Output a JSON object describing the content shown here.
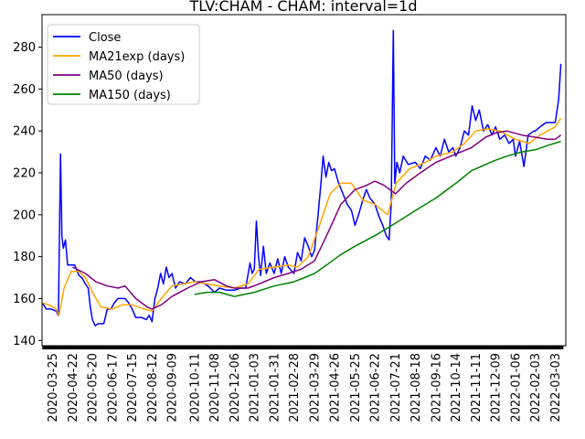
{
  "chart_data": {
    "type": "line",
    "title": "TLV:CHAM - CHAM: interval=1d",
    "xlabel": "",
    "ylabel": "",
    "ylim": [
      137.5,
      295.5
    ],
    "xlim": [
      "2020-03-10",
      "2022-03-18"
    ],
    "yticks": [
      140,
      160,
      180,
      200,
      220,
      240,
      260,
      280
    ],
    "xticks": [
      "2020-03-25",
      "2020-04-22",
      "2020-05-20",
      "2020-06-17",
      "2020-07-15",
      "2020-08-12",
      "2020-09-09",
      "2020-10-11",
      "2020-11-08",
      "2020-12-06",
      "2021-01-03",
      "2021-01-31",
      "2021-02-28",
      "2021-03-29",
      "2021-04-26",
      "2021-05-25",
      "2021-06-22",
      "2021-07-21",
      "2021-08-18",
      "2021-09-16",
      "2021-10-14",
      "2021-11-11",
      "2021-12-09",
      "2022-01-06",
      "2022-02-03",
      "2022-03-03"
    ],
    "legend_position": "upper left",
    "grid": false,
    "series": [
      {
        "name": "Close",
        "color": "#0000ff",
        "points": [
          [
            "2020-03-10",
            158
          ],
          [
            "2020-03-16",
            155
          ],
          [
            "2020-03-23",
            155
          ],
          [
            "2020-03-30",
            154
          ],
          [
            "2020-04-02",
            152
          ],
          [
            "2020-04-05",
            229
          ],
          [
            "2020-04-07",
            190
          ],
          [
            "2020-04-09",
            184
          ],
          [
            "2020-04-12",
            188
          ],
          [
            "2020-04-15",
            176
          ],
          [
            "2020-04-25",
            176
          ],
          [
            "2020-05-01",
            171
          ],
          [
            "2020-05-05",
            170
          ],
          [
            "2020-05-10",
            167
          ],
          [
            "2020-05-14",
            165
          ],
          [
            "2020-05-17",
            156
          ],
          [
            "2020-05-20",
            150
          ],
          [
            "2020-05-24",
            147
          ],
          [
            "2020-05-28",
            148
          ],
          [
            "2020-06-05",
            148
          ],
          [
            "2020-06-10",
            155
          ],
          [
            "2020-06-15",
            155
          ],
          [
            "2020-06-20",
            158
          ],
          [
            "2020-06-25",
            160
          ],
          [
            "2020-07-05",
            160
          ],
          [
            "2020-07-10",
            158
          ],
          [
            "2020-07-15",
            155
          ],
          [
            "2020-07-20",
            151
          ],
          [
            "2020-07-28",
            151
          ],
          [
            "2020-08-04",
            150
          ],
          [
            "2020-08-08",
            152
          ],
          [
            "2020-08-12",
            149
          ],
          [
            "2020-08-16",
            160
          ],
          [
            "2020-08-20",
            165
          ],
          [
            "2020-08-24",
            172
          ],
          [
            "2020-08-28",
            167
          ],
          [
            "2020-09-01",
            175
          ],
          [
            "2020-09-05",
            170
          ],
          [
            "2020-09-09",
            172
          ],
          [
            "2020-09-14",
            165
          ],
          [
            "2020-09-20",
            168
          ],
          [
            "2020-09-28",
            167
          ],
          [
            "2020-10-05",
            170
          ],
          [
            "2020-10-12",
            168
          ],
          [
            "2020-10-20",
            168
          ],
          [
            "2020-10-30",
            166
          ],
          [
            "2020-11-08",
            163
          ],
          [
            "2020-11-15",
            165
          ],
          [
            "2020-11-25",
            164
          ],
          [
            "2020-12-06",
            164
          ],
          [
            "2020-12-15",
            165
          ],
          [
            "2020-12-22",
            165
          ],
          [
            "2020-12-28",
            177
          ],
          [
            "2020-12-31",
            172
          ],
          [
            "2021-01-03",
            174
          ],
          [
            "2021-01-06",
            197
          ],
          [
            "2021-01-09",
            180
          ],
          [
            "2021-01-12",
            171
          ],
          [
            "2021-01-16",
            185
          ],
          [
            "2021-01-20",
            172
          ],
          [
            "2021-01-25",
            177
          ],
          [
            "2021-01-31",
            172
          ],
          [
            "2021-02-05",
            179
          ],
          [
            "2021-02-10",
            172
          ],
          [
            "2021-02-15",
            180
          ],
          [
            "2021-02-20",
            175
          ],
          [
            "2021-02-28",
            172
          ],
          [
            "2021-03-05",
            182
          ],
          [
            "2021-03-10",
            178
          ],
          [
            "2021-03-15",
            189
          ],
          [
            "2021-03-20",
            185
          ],
          [
            "2021-03-25",
            180
          ],
          [
            "2021-03-29",
            183
          ],
          [
            "2021-04-03",
            200
          ],
          [
            "2021-04-07",
            215
          ],
          [
            "2021-04-10",
            228
          ],
          [
            "2021-04-14",
            218
          ],
          [
            "2021-04-18",
            225
          ],
          [
            "2021-04-22",
            221
          ],
          [
            "2021-04-26",
            222
          ],
          [
            "2021-05-02",
            215
          ],
          [
            "2021-05-08",
            210
          ],
          [
            "2021-05-14",
            205
          ],
          [
            "2021-05-20",
            202
          ],
          [
            "2021-05-25",
            195
          ],
          [
            "2021-05-30",
            200
          ],
          [
            "2021-06-05",
            207
          ],
          [
            "2021-06-10",
            212
          ],
          [
            "2021-06-15",
            208
          ],
          [
            "2021-06-22",
            205
          ],
          [
            "2021-06-28",
            199
          ],
          [
            "2021-07-03",
            195
          ],
          [
            "2021-07-08",
            190
          ],
          [
            "2021-07-12",
            188
          ],
          [
            "2021-07-15",
            205
          ],
          [
            "2021-07-18",
            288
          ],
          [
            "2021-07-20",
            215
          ],
          [
            "2021-07-23",
            225
          ],
          [
            "2021-07-27",
            220
          ],
          [
            "2021-08-01",
            228
          ],
          [
            "2021-08-08",
            224
          ],
          [
            "2021-08-18",
            225
          ],
          [
            "2021-08-25",
            222
          ],
          [
            "2021-09-01",
            228
          ],
          [
            "2021-09-08",
            226
          ],
          [
            "2021-09-16",
            232
          ],
          [
            "2021-09-22",
            228
          ],
          [
            "2021-09-28",
            236
          ],
          [
            "2021-10-04",
            230
          ],
          [
            "2021-10-10",
            232
          ],
          [
            "2021-10-14",
            228
          ],
          [
            "2021-10-20",
            232
          ],
          [
            "2021-10-26",
            240
          ],
          [
            "2021-11-01",
            238
          ],
          [
            "2021-11-06",
            252
          ],
          [
            "2021-11-11",
            245
          ],
          [
            "2021-11-16",
            250
          ],
          [
            "2021-11-22",
            240
          ],
          [
            "2021-11-28",
            243
          ],
          [
            "2021-12-04",
            238
          ],
          [
            "2021-12-09",
            242
          ],
          [
            "2021-12-15",
            236
          ],
          [
            "2021-12-22",
            238
          ],
          [
            "2021-12-28",
            234
          ],
          [
            "2022-01-03",
            236
          ],
          [
            "2022-01-06",
            228
          ],
          [
            "2022-01-12",
            235
          ],
          [
            "2022-01-18",
            223
          ],
          [
            "2022-01-24",
            238
          ],
          [
            "2022-02-01",
            240
          ],
          [
            "2022-02-03",
            240
          ],
          [
            "2022-02-10",
            242
          ],
          [
            "2022-02-18",
            244
          ],
          [
            "2022-02-28",
            244
          ],
          [
            "2022-03-03",
            244
          ],
          [
            "2022-03-08",
            255
          ],
          [
            "2022-03-11",
            272
          ]
        ]
      },
      {
        "name": "MA21exp (days)",
        "color": "#ffa500",
        "points": [
          [
            "2020-03-10",
            158
          ],
          [
            "2020-03-20",
            157
          ],
          [
            "2020-03-30",
            155
          ],
          [
            "2020-04-03",
            152
          ],
          [
            "2020-04-10",
            165
          ],
          [
            "2020-04-20",
            173
          ],
          [
            "2020-05-01",
            173
          ],
          [
            "2020-05-10",
            170
          ],
          [
            "2020-05-20",
            163
          ],
          [
            "2020-06-01",
            156
          ],
          [
            "2020-06-17",
            155
          ],
          [
            "2020-07-01",
            157
          ],
          [
            "2020-07-15",
            157
          ],
          [
            "2020-08-01",
            155
          ],
          [
            "2020-08-12",
            154
          ],
          [
            "2020-08-25",
            160
          ],
          [
            "2020-09-09",
            166
          ],
          [
            "2020-09-25",
            167
          ],
          [
            "2020-10-11",
            168
          ],
          [
            "2020-10-28",
            167
          ],
          [
            "2020-11-15",
            166
          ],
          [
            "2020-12-06",
            165
          ],
          [
            "2020-12-25",
            167
          ],
          [
            "2021-01-10",
            174
          ],
          [
            "2021-01-31",
            175
          ],
          [
            "2021-02-20",
            176
          ],
          [
            "2021-03-05",
            175
          ],
          [
            "2021-03-20",
            180
          ],
          [
            "2021-04-05",
            195
          ],
          [
            "2021-04-20",
            210
          ],
          [
            "2021-05-05",
            215
          ],
          [
            "2021-05-20",
            215
          ],
          [
            "2021-06-05",
            207
          ],
          [
            "2021-06-22",
            205
          ],
          [
            "2021-07-10",
            200
          ],
          [
            "2021-07-22",
            215
          ],
          [
            "2021-08-10",
            222
          ],
          [
            "2021-09-01",
            225
          ],
          [
            "2021-09-16",
            228
          ],
          [
            "2021-10-10",
            230
          ],
          [
            "2021-10-26",
            234
          ],
          [
            "2021-11-11",
            240
          ],
          [
            "2021-11-28",
            241
          ],
          [
            "2021-12-15",
            240
          ],
          [
            "2022-01-06",
            236
          ],
          [
            "2022-01-25",
            234
          ],
          [
            "2022-02-10",
            238
          ],
          [
            "2022-03-03",
            242
          ],
          [
            "2022-03-11",
            246
          ]
        ]
      },
      {
        "name": "MA50 (days)",
        "color": "#800080",
        "points": [
          [
            "2020-04-22",
            175
          ],
          [
            "2020-05-10",
            172
          ],
          [
            "2020-05-25",
            168
          ],
          [
            "2020-06-10",
            166
          ],
          [
            "2020-06-25",
            165
          ],
          [
            "2020-07-05",
            166
          ],
          [
            "2020-07-20",
            160
          ],
          [
            "2020-08-05",
            156
          ],
          [
            "2020-08-12",
            155
          ],
          [
            "2020-08-25",
            157
          ],
          [
            "2020-09-09",
            161
          ],
          [
            "2020-10-01",
            165
          ],
          [
            "2020-10-20",
            168
          ],
          [
            "2020-11-08",
            169
          ],
          [
            "2020-11-25",
            166
          ],
          [
            "2020-12-06",
            165
          ],
          [
            "2020-12-25",
            165
          ],
          [
            "2021-01-10",
            167
          ],
          [
            "2021-01-31",
            170
          ],
          [
            "2021-02-20",
            172
          ],
          [
            "2021-03-10",
            174
          ],
          [
            "2021-03-29",
            178
          ],
          [
            "2021-04-15",
            190
          ],
          [
            "2021-05-05",
            205
          ],
          [
            "2021-05-25",
            212
          ],
          [
            "2021-06-10",
            214
          ],
          [
            "2021-06-22",
            216
          ],
          [
            "2021-07-05",
            214
          ],
          [
            "2021-07-21",
            210
          ],
          [
            "2021-08-05",
            215
          ],
          [
            "2021-08-25",
            220
          ],
          [
            "2021-09-16",
            225
          ],
          [
            "2021-10-14",
            229
          ],
          [
            "2021-11-05",
            232
          ],
          [
            "2021-11-25",
            237
          ],
          [
            "2021-12-09",
            239
          ],
          [
            "2021-12-25",
            240
          ],
          [
            "2022-01-15",
            238
          ],
          [
            "2022-02-03",
            237
          ],
          [
            "2022-02-20",
            236
          ],
          [
            "2022-03-03",
            236
          ],
          [
            "2022-03-11",
            238
          ]
        ]
      },
      {
        "name": "MA150 (days)",
        "color": "#008000",
        "points": [
          [
            "2020-10-11",
            162
          ],
          [
            "2020-10-28",
            163
          ],
          [
            "2020-11-15",
            163
          ],
          [
            "2020-12-06",
            161
          ],
          [
            "2020-12-20",
            162
          ],
          [
            "2021-01-03",
            163
          ],
          [
            "2021-01-31",
            166
          ],
          [
            "2021-02-28",
            168
          ],
          [
            "2021-03-15",
            170
          ],
          [
            "2021-03-29",
            172
          ],
          [
            "2021-04-15",
            176
          ],
          [
            "2021-05-05",
            181
          ],
          [
            "2021-05-25",
            185
          ],
          [
            "2021-06-22",
            190
          ],
          [
            "2021-07-21",
            196
          ],
          [
            "2021-08-18",
            202
          ],
          [
            "2021-09-16",
            208
          ],
          [
            "2021-10-14",
            215
          ],
          [
            "2021-11-05",
            221
          ],
          [
            "2021-11-25",
            224
          ],
          [
            "2021-12-09",
            226
          ],
          [
            "2021-12-25",
            228
          ],
          [
            "2022-01-15",
            230
          ],
          [
            "2022-02-03",
            231
          ],
          [
            "2022-02-20",
            233
          ],
          [
            "2022-03-11",
            235
          ]
        ]
      }
    ]
  }
}
